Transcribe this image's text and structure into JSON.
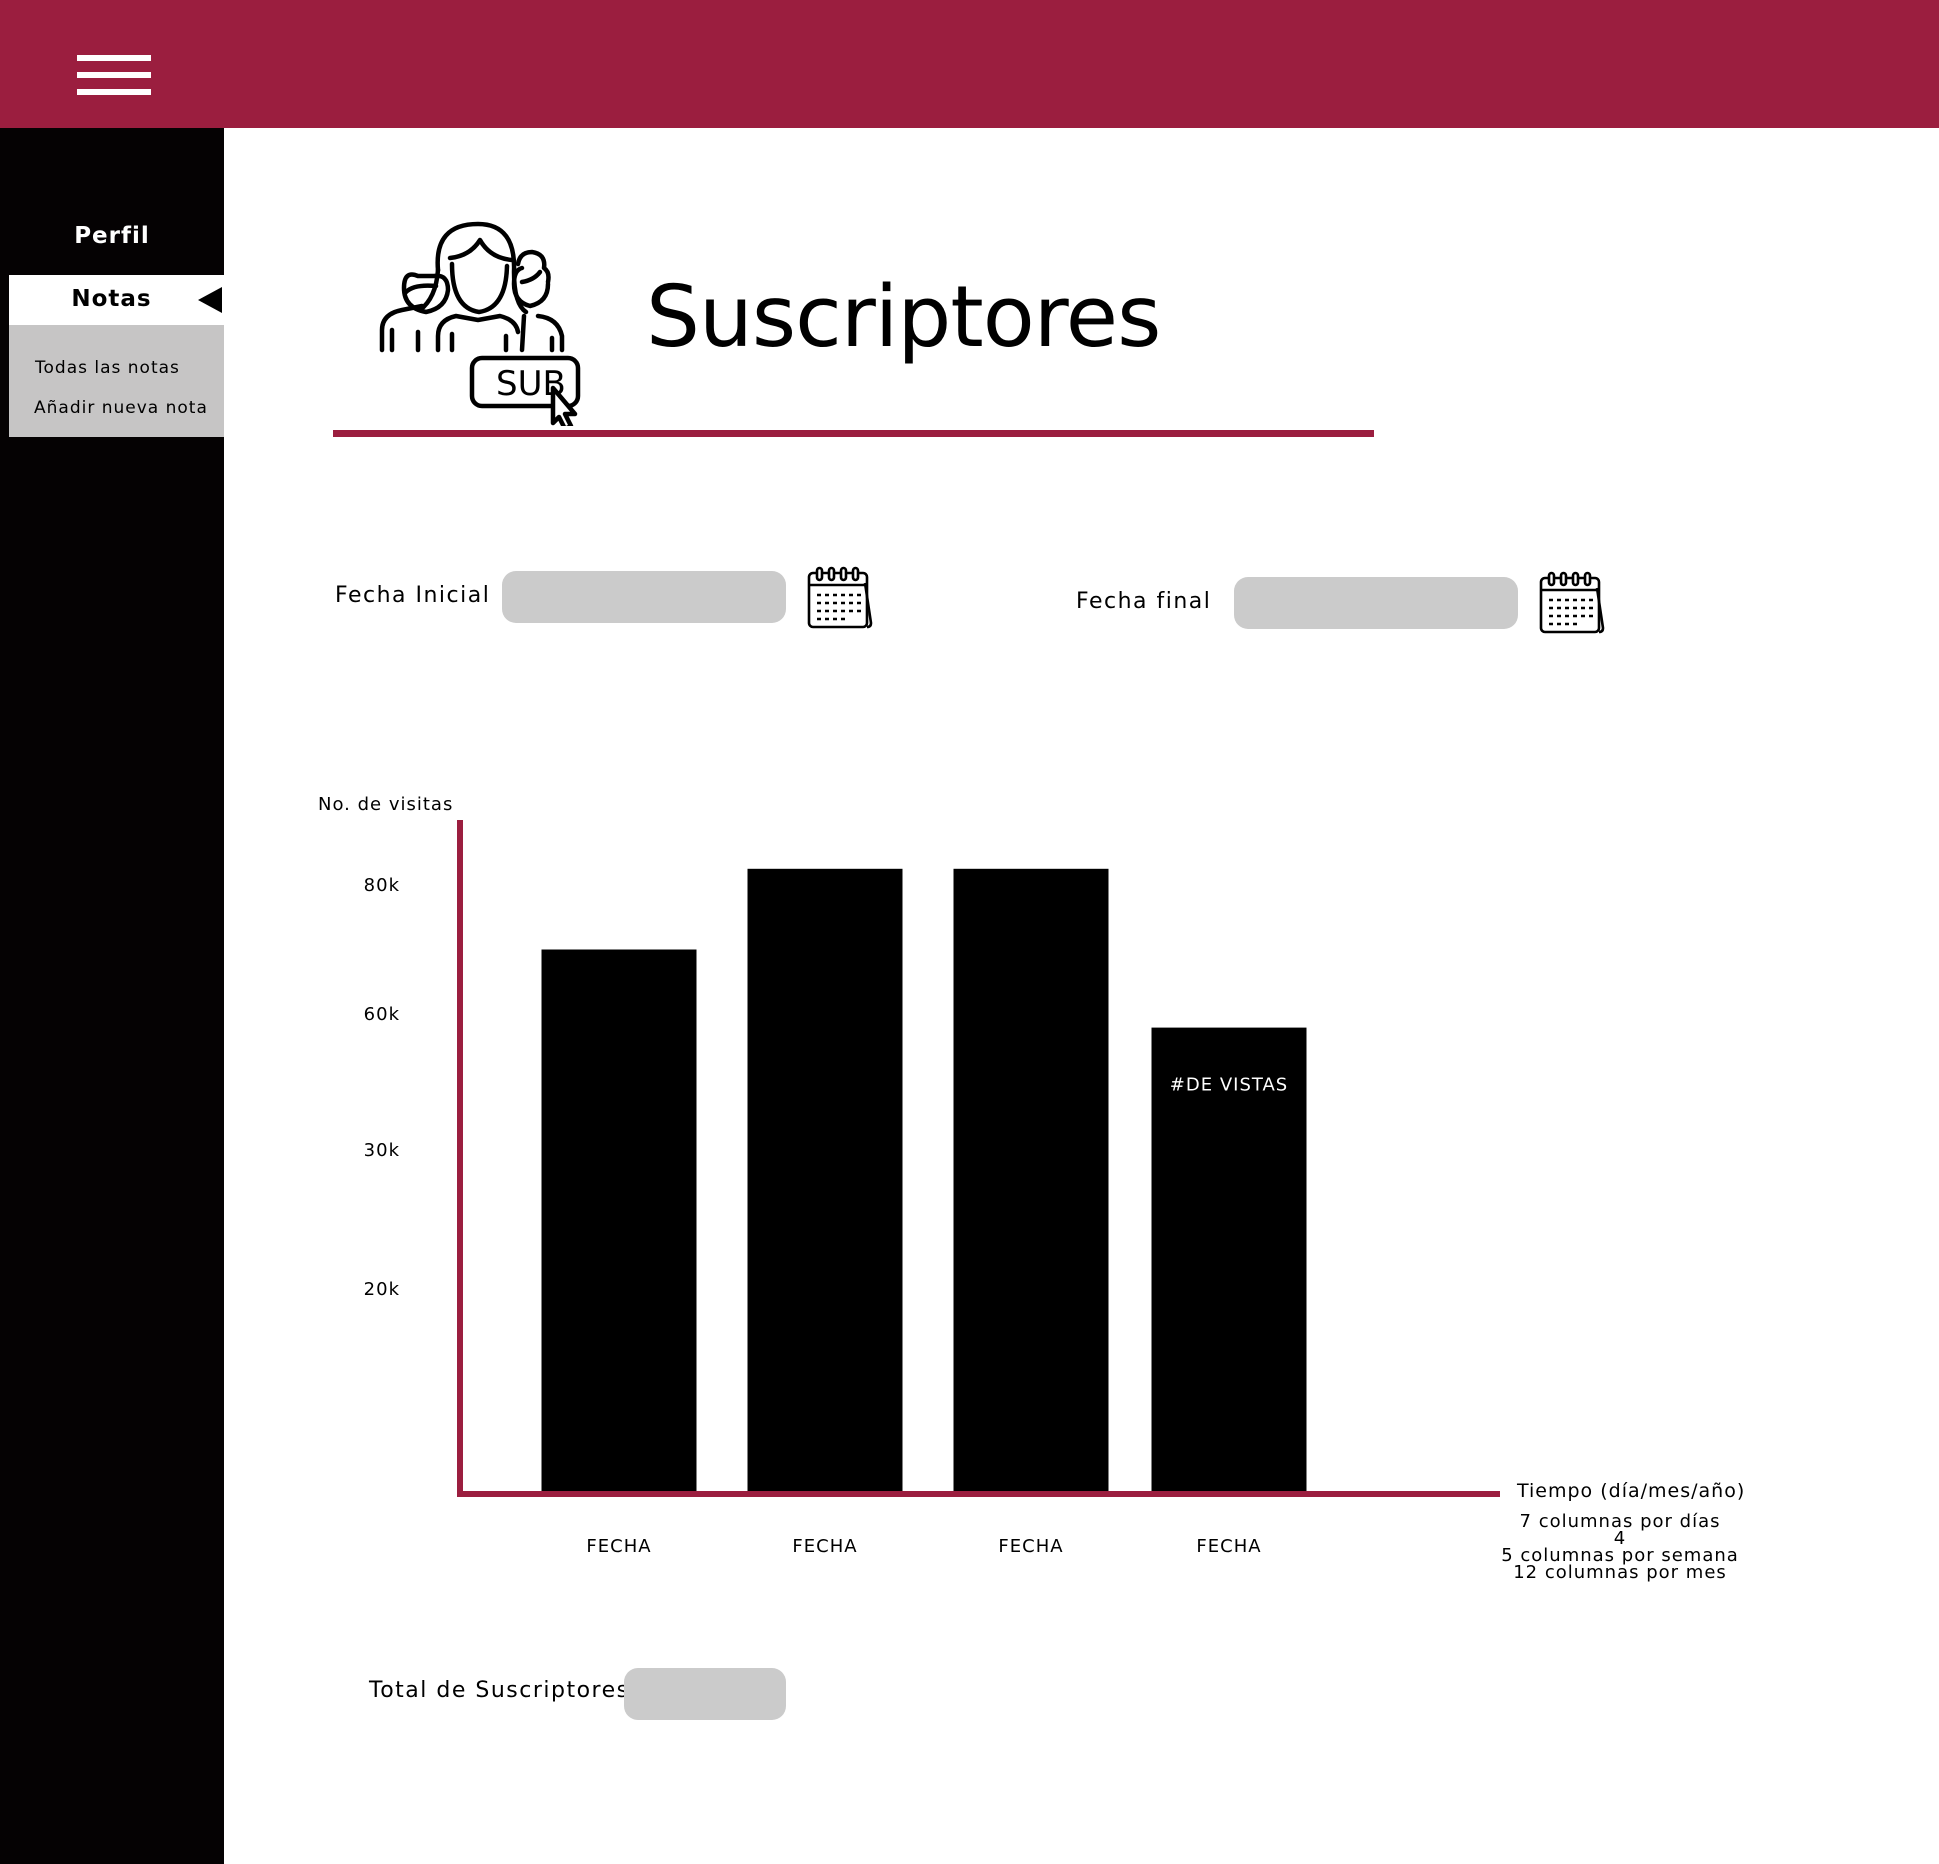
{
  "header": {
    "menu_icon": "hamburger-icon",
    "color": "#9b1e3f"
  },
  "sidebar": {
    "items": [
      {
        "label": "Perfil"
      },
      {
        "label": "Notas",
        "active": true
      }
    ],
    "submenu": [
      {
        "label": "Todas las notas"
      },
      {
        "label": "Añadir nueva nota"
      }
    ]
  },
  "main": {
    "title": "Suscriptores",
    "title_icon": "subscribers-icon",
    "icon_badge": "SUB",
    "filters": {
      "start_label": "Fecha Inicial",
      "start_value": "",
      "end_label": "Fecha final",
      "end_value": "",
      "calendar_icon": "calendar-icon"
    },
    "axis_notes": [
      "7 columnas por días",
      "4",
      "5 columnas por semana",
      "12 columnas por mes"
    ],
    "total": {
      "label": "Total de Suscriptores",
      "value": ""
    }
  },
  "chart_data": {
    "type": "bar",
    "ylabel": "No. de visitas",
    "xlabel": "Tiempo (día/mes/año)",
    "y_ticks": [
      {
        "value": 20000,
        "label": "20k"
      },
      {
        "value": 30000,
        "label": "30k"
      },
      {
        "value": 60000,
        "label": "60k"
      },
      {
        "value": 80000,
        "label": "80k"
      }
    ],
    "categories": [
      "FECHA",
      "FECHA",
      "FECHA",
      "FECHA"
    ],
    "values": [
      70000,
      82000,
      82000,
      57000
    ],
    "bar_annotations": [
      "",
      "",
      "",
      "#DE VISTAS"
    ],
    "colors": {
      "bar": "#000000",
      "axis": "#9b1e3f"
    }
  }
}
